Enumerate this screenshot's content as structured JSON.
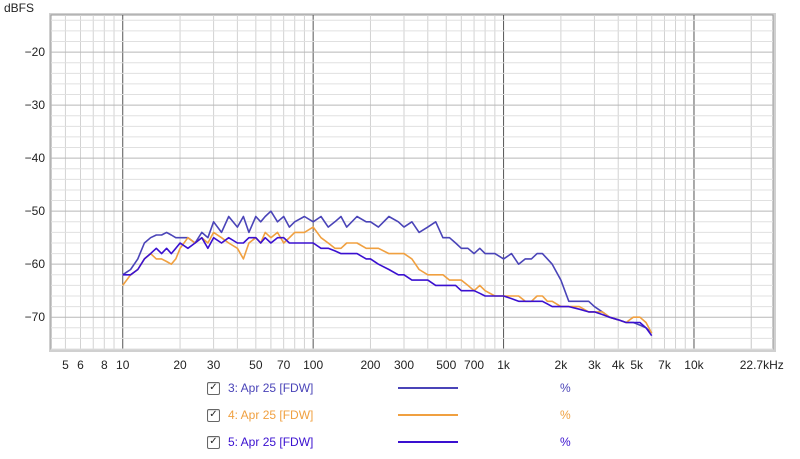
{
  "chart_data": {
    "type": "line",
    "ylabel": "dBFS",
    "xscale": "log",
    "xlim": [
      4.2,
      26000
    ],
    "ylim": [
      -76,
      -13
    ],
    "grid": true,
    "x_ticks": [
      {
        "v": 5,
        "label": "5"
      },
      {
        "v": 6,
        "label": "6"
      },
      {
        "v": 8,
        "label": "8"
      },
      {
        "v": 10,
        "label": "10"
      },
      {
        "v": 20,
        "label": "20"
      },
      {
        "v": 30,
        "label": "30"
      },
      {
        "v": 50,
        "label": "50"
      },
      {
        "v": 70,
        "label": "70"
      },
      {
        "v": 100,
        "label": "100"
      },
      {
        "v": 200,
        "label": "200"
      },
      {
        "v": 300,
        "label": "300"
      },
      {
        "v": 500,
        "label": "500"
      },
      {
        "v": 700,
        "label": "700"
      },
      {
        "v": 1000,
        "label": "1k"
      },
      {
        "v": 2000,
        "label": "2k"
      },
      {
        "v": 3000,
        "label": "3k"
      },
      {
        "v": 4000,
        "label": "4k"
      },
      {
        "v": 5000,
        "label": "5k"
      },
      {
        "v": 7000,
        "label": "7k"
      },
      {
        "v": 10000,
        "label": "10k"
      },
      {
        "v": 22700,
        "label": "22.7kHz"
      }
    ],
    "y_ticks": [
      {
        "v": -20,
        "label": "−20"
      },
      {
        "v": -30,
        "label": "−30"
      },
      {
        "v": -40,
        "label": "−40"
      },
      {
        "v": -50,
        "label": "−50"
      },
      {
        "v": -60,
        "label": "−60"
      },
      {
        "v": -70,
        "label": "−70"
      }
    ],
    "series": [
      {
        "name": "3: Apr 25 [FDW]",
        "value_label": "%",
        "color": "#4a44b8",
        "x": [
          10,
          11,
          12,
          13,
          14,
          15,
          16,
          17,
          18,
          19,
          20,
          22,
          24,
          26,
          28,
          30,
          33,
          36,
          40,
          43,
          46,
          50,
          53,
          56,
          60,
          65,
          70,
          75,
          80,
          90,
          100,
          110,
          120,
          130,
          140,
          150,
          170,
          190,
          200,
          220,
          250,
          280,
          300,
          330,
          360,
          400,
          440,
          480,
          520,
          560,
          600,
          650,
          700,
          750,
          800,
          900,
          1000,
          1100,
          1200,
          1300,
          1400,
          1500,
          1600,
          1700,
          1800,
          2000,
          2200,
          2500,
          2800,
          3000,
          3300,
          3600,
          4000,
          4400,
          4800,
          5200,
          5600,
          6000
        ],
        "y": [
          -62,
          -61,
          -59,
          -56,
          -55,
          -54.5,
          -54.5,
          -54,
          -54.5,
          -55,
          -55,
          -55,
          -56,
          -54,
          -55,
          -52,
          -54,
          -51,
          -53,
          -51,
          -54,
          -51,
          -52,
          -51,
          -50,
          -52,
          -51,
          -53,
          -52,
          -51,
          -52,
          -51,
          -53,
          -52,
          -51,
          -53,
          -51,
          -52,
          -52,
          -53,
          -51,
          -52,
          -53,
          -52,
          -54,
          -53,
          -52,
          -55,
          -55,
          -56,
          -57,
          -57,
          -58,
          -57,
          -58,
          -58,
          -59,
          -58,
          -60,
          -59,
          -59,
          -58,
          -58,
          -59,
          -60,
          -63,
          -67,
          -67,
          -67,
          -68,
          -69,
          -70,
          -70.5,
          -71,
          -71,
          -71.5,
          -72,
          -73
        ]
      },
      {
        "name": "4: Apr 25 [FDW]",
        "value_label": "%",
        "color": "#f0a040",
        "x": [
          10,
          11,
          12,
          13,
          14,
          15,
          16,
          17,
          18,
          19,
          20,
          22,
          24,
          26,
          28,
          30,
          33,
          36,
          40,
          43,
          46,
          50,
          53,
          56,
          60,
          65,
          70,
          75,
          80,
          90,
          100,
          110,
          120,
          130,
          140,
          150,
          170,
          190,
          200,
          220,
          250,
          280,
          300,
          330,
          360,
          400,
          440,
          480,
          520,
          560,
          600,
          650,
          700,
          750,
          800,
          900,
          1000,
          1100,
          1200,
          1300,
          1400,
          1500,
          1600,
          1700,
          1800,
          2000,
          2200,
          2500,
          2800,
          3000,
          3300,
          3600,
          4000,
          4400,
          4800,
          5200,
          5600,
          6000
        ],
        "y": [
          -64,
          -62,
          -61,
          -59,
          -58,
          -59,
          -59,
          -59.5,
          -60,
          -59,
          -57,
          -55,
          -56,
          -55,
          -56,
          -54,
          -55,
          -56,
          -57,
          -59,
          -56,
          -55,
          -56,
          -54,
          -55,
          -54,
          -56,
          -55,
          -54,
          -54,
          -53,
          -55,
          -56,
          -57,
          -57,
          -56,
          -56,
          -57,
          -57,
          -57,
          -58,
          -58,
          -58,
          -59,
          -61,
          -62,
          -62,
          -62,
          -63,
          -63,
          -63,
          -64,
          -65,
          -64,
          -65,
          -66,
          -66,
          -66,
          -66,
          -67,
          -67,
          -66,
          -66,
          -67,
          -67,
          -68,
          -68,
          -68,
          -69,
          -69,
          -69,
          -70,
          -70.5,
          -71,
          -70,
          -70,
          -71,
          -73
        ]
      },
      {
        "name": "5: Apr 25 [FDW]",
        "value_label": "%",
        "color": "#3a10d0",
        "x": [
          10,
          11,
          12,
          13,
          14,
          15,
          16,
          17,
          18,
          19,
          20,
          22,
          24,
          26,
          28,
          30,
          33,
          36,
          40,
          43,
          46,
          50,
          53,
          56,
          60,
          65,
          70,
          75,
          80,
          90,
          100,
          110,
          120,
          130,
          140,
          150,
          170,
          190,
          200,
          220,
          250,
          280,
          300,
          330,
          360,
          400,
          440,
          480,
          520,
          560,
          600,
          650,
          700,
          750,
          800,
          900,
          1000,
          1100,
          1200,
          1300,
          1400,
          1500,
          1600,
          1700,
          1800,
          2000,
          2200,
          2500,
          2800,
          3000,
          3300,
          3600,
          4000,
          4400,
          4800,
          5200,
          5600,
          6000
        ],
        "y": [
          -62,
          -62,
          -61,
          -59,
          -58,
          -57,
          -58,
          -57,
          -58,
          -57,
          -56,
          -57,
          -56,
          -55,
          -57,
          -55,
          -56,
          -55,
          -56,
          -56,
          -55,
          -55,
          -56,
          -55,
          -56,
          -55,
          -55,
          -56,
          -56,
          -56,
          -56,
          -57,
          -57,
          -57.5,
          -58,
          -58,
          -58,
          -59,
          -59,
          -60,
          -61,
          -62,
          -62,
          -63,
          -63,
          -63,
          -64,
          -64,
          -64,
          -64,
          -65,
          -65,
          -65,
          -65.5,
          -66,
          -66,
          -66,
          -66.5,
          -67,
          -67,
          -67,
          -67,
          -67,
          -67.5,
          -68,
          -68,
          -68,
          -68.5,
          -69,
          -69,
          -69.5,
          -70,
          -70.5,
          -71,
          -71,
          -71,
          -72,
          -73.5
        ]
      }
    ]
  }
}
